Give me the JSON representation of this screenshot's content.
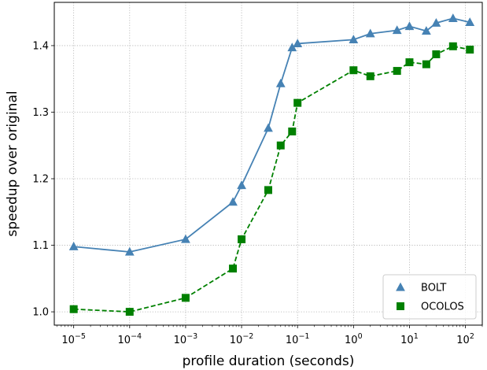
{
  "chart_data": {
    "type": "line",
    "xscale": "log",
    "xlabel": "profile duration (seconds)",
    "ylabel": "speedup over original",
    "xlim": [
      4.5e-06,
      0.00022,
      0.28,
      200
    ],
    "ylim": [
      0.98,
      1.465
    ],
    "grid": true,
    "legend_position": "lower-right",
    "x_ticks": [
      1e-05,
      0.0001,
      0.001,
      0.01,
      0.1,
      1,
      10,
      100
    ],
    "x_tick_labels": [
      {
        "base": "10",
        "exp": "−5"
      },
      {
        "base": "10",
        "exp": "−4"
      },
      {
        "base": "10",
        "exp": "−3"
      },
      {
        "base": "10",
        "exp": "−2"
      },
      {
        "base": "10",
        "exp": "−1"
      },
      {
        "base": "10",
        "exp": "0"
      },
      {
        "base": "10",
        "exp": "1"
      },
      {
        "base": "10",
        "exp": "2"
      }
    ],
    "y_ticks": [
      1.0,
      1.1,
      1.2,
      1.3,
      1.4
    ],
    "y_tick_labels": [
      "1.0",
      "1.1",
      "1.2",
      "1.3",
      "1.4"
    ],
    "series": [
      {
        "name": "BOLT",
        "color": "#4682b4",
        "marker": "triangle",
        "linestyle": "solid",
        "points": [
          [
            1e-05,
            1.098
          ],
          [
            0.0001,
            1.09
          ],
          [
            0.001,
            1.109
          ],
          [
            0.007,
            1.165
          ],
          [
            0.01,
            1.19
          ],
          [
            0.03,
            1.276
          ],
          [
            0.05,
            1.343
          ],
          [
            0.08,
            1.397
          ],
          [
            0.1,
            1.403
          ],
          [
            1,
            1.409
          ],
          [
            2,
            1.418
          ],
          [
            6,
            1.423
          ],
          [
            10,
            1.429
          ],
          [
            20,
            1.422
          ],
          [
            30,
            1.434
          ],
          [
            60,
            1.441
          ],
          [
            120,
            1.435
          ]
        ]
      },
      {
        "name": "OCOLOS",
        "color": "#008000",
        "marker": "square",
        "linestyle": "dashed",
        "points": [
          [
            1e-05,
            1.004
          ],
          [
            0.0001,
            1.0
          ],
          [
            0.001,
            1.021
          ],
          [
            0.007,
            1.065
          ],
          [
            0.01,
            1.109
          ],
          [
            0.03,
            1.183
          ],
          [
            0.05,
            1.25
          ],
          [
            0.08,
            1.271
          ],
          [
            0.1,
            1.314
          ],
          [
            1,
            1.363
          ],
          [
            2,
            1.354
          ],
          [
            6,
            1.362
          ],
          [
            10,
            1.375
          ],
          [
            20,
            1.372
          ],
          [
            30,
            1.387
          ],
          [
            60,
            1.399
          ],
          [
            120,
            1.394
          ]
        ]
      }
    ]
  }
}
